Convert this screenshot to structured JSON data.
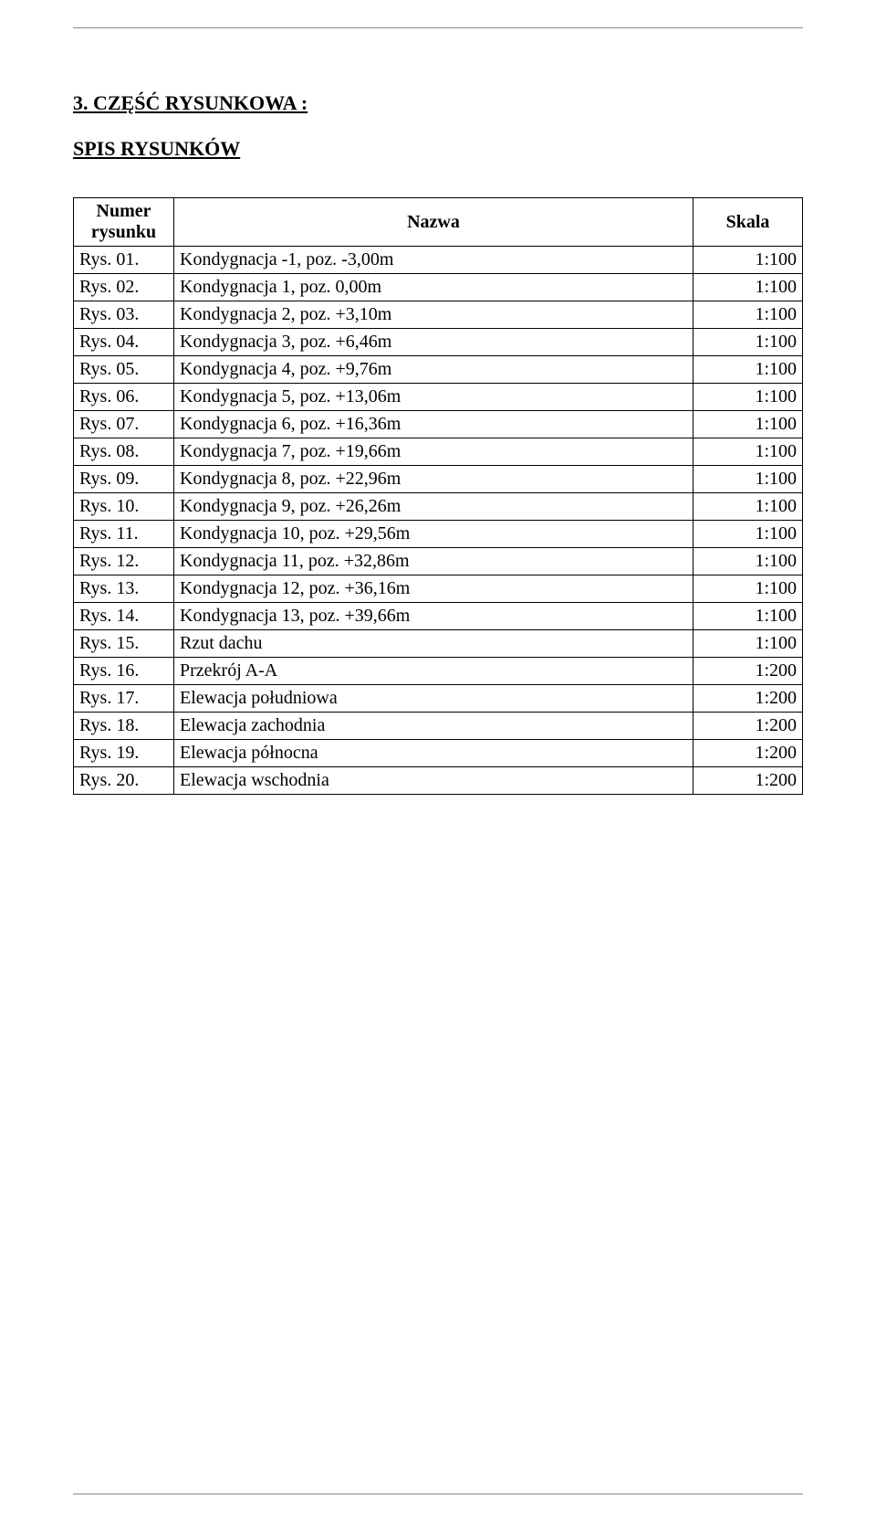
{
  "heading": "3. CZĘŚĆ RYSUNKOWA :",
  "subheading": "SPIS RYSUNKÓW",
  "table": {
    "headers": {
      "number": "Numer\nrysunku",
      "name": "Nazwa",
      "scale": "Skala"
    },
    "rows": [
      {
        "num": "Rys. 01.",
        "name": "Kondygnacja -1, poz. -3,00m",
        "scale": "1:100"
      },
      {
        "num": "Rys. 02.",
        "name": "Kondygnacja 1, poz. 0,00m",
        "scale": "1:100"
      },
      {
        "num": "Rys. 03.",
        "name": "Kondygnacja 2, poz. +3,10m",
        "scale": "1:100"
      },
      {
        "num": "Rys. 04.",
        "name": "Kondygnacja 3, poz. +6,46m",
        "scale": "1:100"
      },
      {
        "num": "Rys. 05.",
        "name": "Kondygnacja 4, poz. +9,76m",
        "scale": "1:100"
      },
      {
        "num": "Rys. 06.",
        "name": "Kondygnacja 5, poz. +13,06m",
        "scale": "1:100"
      },
      {
        "num": "Rys. 07.",
        "name": "Kondygnacja 6, poz. +16,36m",
        "scale": "1:100"
      },
      {
        "num": "Rys. 08.",
        "name": "Kondygnacja 7, poz. +19,66m",
        "scale": "1:100"
      },
      {
        "num": "Rys. 09.",
        "name": "Kondygnacja 8, poz. +22,96m",
        "scale": "1:100"
      },
      {
        "num": "Rys. 10.",
        "name": "Kondygnacja 9, poz. +26,26m",
        "scale": "1:100"
      },
      {
        "num": "Rys. 11.",
        "name": "Kondygnacja 10, poz. +29,56m",
        "scale": "1:100"
      },
      {
        "num": "Rys. 12.",
        "name": "Kondygnacja 11, poz. +32,86m",
        "scale": "1:100"
      },
      {
        "num": "Rys. 13.",
        "name": "Kondygnacja 12, poz. +36,16m",
        "scale": "1:100"
      },
      {
        "num": "Rys. 14.",
        "name": "Kondygnacja 13, poz. +39,66m",
        "scale": "1:100"
      },
      {
        "num": "Rys. 15.",
        "name": "Rzut dachu",
        "scale": "1:100"
      },
      {
        "num": "Rys. 16.",
        "name": "Przekrój A-A",
        "scale": "1:200"
      },
      {
        "num": "Rys. 17.",
        "name": "Elewacja południowa",
        "scale": "1:200"
      },
      {
        "num": "Rys. 18.",
        "name": "Elewacja zachodnia",
        "scale": "1:200"
      },
      {
        "num": "Rys. 19.",
        "name": "Elewacja północna",
        "scale": "1:200"
      },
      {
        "num": "Rys. 20.",
        "name": "Elewacja wschodnia",
        "scale": "1:200"
      }
    ]
  }
}
